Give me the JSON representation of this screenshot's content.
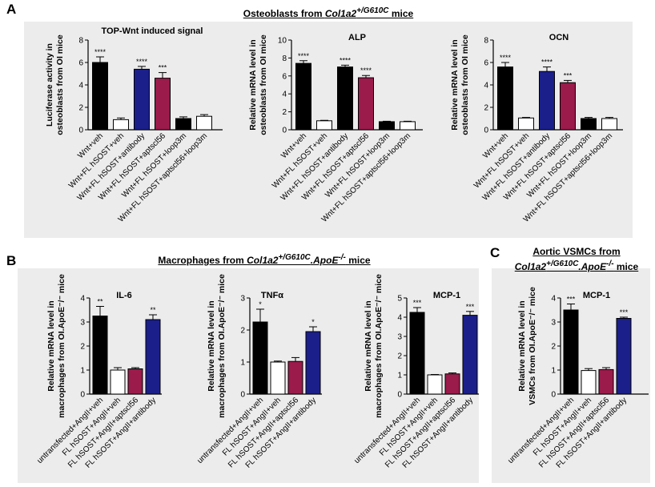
{
  "sections": {
    "a": {
      "label": "A",
      "title_prefix": "Osteoblasts from ",
      "title_gene": "Col1a2",
      "title_sup": "+/G610C",
      "title_suffix": " mice"
    },
    "b": {
      "label": "B",
      "title_prefix": "Macrophages from ",
      "title_gene": "Col1a2",
      "title_sup1": "+/G610C",
      "title_mid": ".ApoE",
      "title_sup2": "-/-",
      "title_suffix": " mice"
    },
    "c": {
      "label": "C",
      "title_line1": "Aortic VSMCs from",
      "title_gene": "Col1a2",
      "title_sup1": "+/G610C",
      "title_mid": ".ApoE",
      "title_sup2": "-/-",
      "title_suffix": " mice"
    }
  },
  "colors": {
    "black": "#000000",
    "white": "#ffffff",
    "blue": "#1a1f8a",
    "crimson": "#9b1b4b",
    "panel_bg": "#ececec"
  },
  "chart_data": [
    {
      "id": "top_wnt",
      "type": "bar",
      "title": "TOP-Wnt induced signal",
      "ylabel_lines": [
        "Luciferase activity in",
        "osteoblasts from OI mice"
      ],
      "ylim": [
        0,
        8
      ],
      "yticks": [
        "0",
        "2",
        "4",
        "6",
        "8"
      ],
      "categories": [
        "Wnt+veh",
        "Wnt+FL hSOST+veh",
        "Wnt+FL hSOST+antibody",
        "Wnt+FL hSOST+aptscl56",
        "Wnt+FL hSOST+loop3m",
        "Wnt+FL hSOST+aptscl56+loop3m"
      ],
      "values": [
        6.0,
        0.9,
        5.4,
        4.6,
        1.0,
        1.2
      ],
      "errors": [
        0.5,
        0.15,
        0.25,
        0.5,
        0.15,
        0.15
      ],
      "colors": [
        "black",
        "white",
        "blue",
        "crimson",
        "black",
        "white"
      ],
      "significance": [
        "****",
        "",
        "****",
        "***",
        "",
        ""
      ]
    },
    {
      "id": "alp",
      "type": "bar",
      "title": "ALP",
      "ylabel_lines": [
        "Relative mRNA level in",
        "osteoblasts from OI mice"
      ],
      "ylim": [
        0,
        10
      ],
      "yticks": [
        "0",
        "2",
        "4",
        "6",
        "8",
        "10"
      ],
      "categories": [
        "Wnt+veh",
        "Wnt+FL hSOST+veh",
        "Wnt+FL hSOST+antibody",
        "Wnt+FL hSOST+aptscl56",
        "Wnt+FL hSOST+loop3m",
        "Wnt+FL hSOST+aptscl56+loop3m"
      ],
      "values": [
        7.4,
        1.0,
        7.0,
        5.8,
        0.9,
        0.9
      ],
      "errors": [
        0.3,
        0.05,
        0.2,
        0.25,
        0.05,
        0.05
      ],
      "colors": [
        "black",
        "white",
        "black",
        "crimson",
        "black",
        "white"
      ],
      "significance": [
        "****",
        "",
        "****",
        "****",
        "",
        ""
      ]
    },
    {
      "id": "ocn",
      "type": "bar",
      "title": "OCN",
      "ylabel_lines": [
        "Relative mRNA level in",
        "osteoblasts from OI mice"
      ],
      "ylim": [
        0,
        8
      ],
      "yticks": [
        "0",
        "2",
        "4",
        "6",
        "8"
      ],
      "categories": [
        "Wnt+veh",
        "Wnt+FL hSOST+veh",
        "Wnt+FL hSOST+antibody",
        "Wnt+FL hSOST+aptscl56",
        "Wnt+FL hSOST+loop3m",
        "Wnt+FL hSOST+aptscl56+loop3m"
      ],
      "values": [
        5.6,
        1.05,
        5.2,
        4.2,
        1.0,
        1.0
      ],
      "errors": [
        0.4,
        0.05,
        0.4,
        0.2,
        0.1,
        0.1
      ],
      "colors": [
        "black",
        "white",
        "blue",
        "crimson",
        "black",
        "white"
      ],
      "significance": [
        "****",
        "",
        "****",
        "***",
        "",
        ""
      ]
    },
    {
      "id": "il6",
      "type": "bar",
      "title": "IL-6",
      "ylabel_lines": [
        "Relative mRNA level in",
        "macrophages from OI.ApoE⁻/⁻ mice"
      ],
      "ylim": [
        0,
        4
      ],
      "yticks": [
        "0",
        "1",
        "2",
        "3",
        "4"
      ],
      "categories": [
        "untransfected+AngII+veh",
        "FL hSOST+AngII+veh",
        "FL hSOST+AngII+aptscl56",
        "FL hSOST+AngII+antibody"
      ],
      "values": [
        3.25,
        1.0,
        1.05,
        3.1
      ],
      "errors": [
        0.4,
        0.1,
        0.05,
        0.2
      ],
      "colors": [
        "black",
        "white",
        "crimson",
        "blue"
      ],
      "significance": [
        "**",
        "",
        "",
        "**"
      ]
    },
    {
      "id": "tnfa",
      "type": "bar",
      "title": "TNFα",
      "ylabel_lines": [
        "Relative mRNA level in",
        "macrophages from OI.ApoE⁻/⁻ mice"
      ],
      "ylim": [
        0,
        3
      ],
      "yticks": [
        "0",
        "1",
        "2",
        "3"
      ],
      "categories": [
        "untransfected+AngII+veh",
        "FL hSOST+AngII+veh",
        "FL hSOST+AngII+aptscl56",
        "FL hSOST+AngII+antibody"
      ],
      "values": [
        2.25,
        1.0,
        1.02,
        1.95
      ],
      "errors": [
        0.4,
        0.03,
        0.12,
        0.15
      ],
      "colors": [
        "black",
        "white",
        "crimson",
        "blue"
      ],
      "significance": [
        "*",
        "",
        "",
        "*"
      ]
    },
    {
      "id": "mcp1_mac",
      "type": "bar",
      "title": "MCP-1",
      "ylabel_lines": [
        "Relative mRNA level in",
        "macrophages from OI.ApoE⁻/⁻ mice"
      ],
      "ylim": [
        0,
        5
      ],
      "yticks": [
        "0",
        "1",
        "2",
        "3",
        "4",
        "5"
      ],
      "categories": [
        "untransfected+AngII+veh",
        "FL hSOST+AngII+veh",
        "FL hSOST+AngII+aptscl56",
        "FL hSOST+AngII+antibody"
      ],
      "values": [
        4.25,
        1.0,
        1.05,
        4.1
      ],
      "errors": [
        0.25,
        0.02,
        0.05,
        0.2
      ],
      "colors": [
        "black",
        "white",
        "crimson",
        "blue"
      ],
      "significance": [
        "***",
        "",
        "",
        "***"
      ]
    },
    {
      "id": "mcp1_vsmc",
      "type": "bar",
      "title": "MCP-1",
      "ylabel_lines": [
        "Relative mRNA level in",
        "VSMCs from OI.ApoE⁻/⁻ mice"
      ],
      "ylim": [
        0,
        4
      ],
      "yticks": [
        "0",
        "1",
        "2",
        "3",
        "4"
      ],
      "categories": [
        "untransfected+AngII+veh",
        "FL hSOST+AngII+veh",
        "FL hSOST+AngII+aptscl56",
        "FL hSOST+AngII+antibody"
      ],
      "values": [
        3.5,
        0.98,
        1.02,
        3.15
      ],
      "errors": [
        0.25,
        0.08,
        0.08,
        0.05
      ],
      "colors": [
        "black",
        "white",
        "crimson",
        "blue"
      ],
      "significance": [
        "***",
        "",
        "",
        "***"
      ]
    }
  ]
}
